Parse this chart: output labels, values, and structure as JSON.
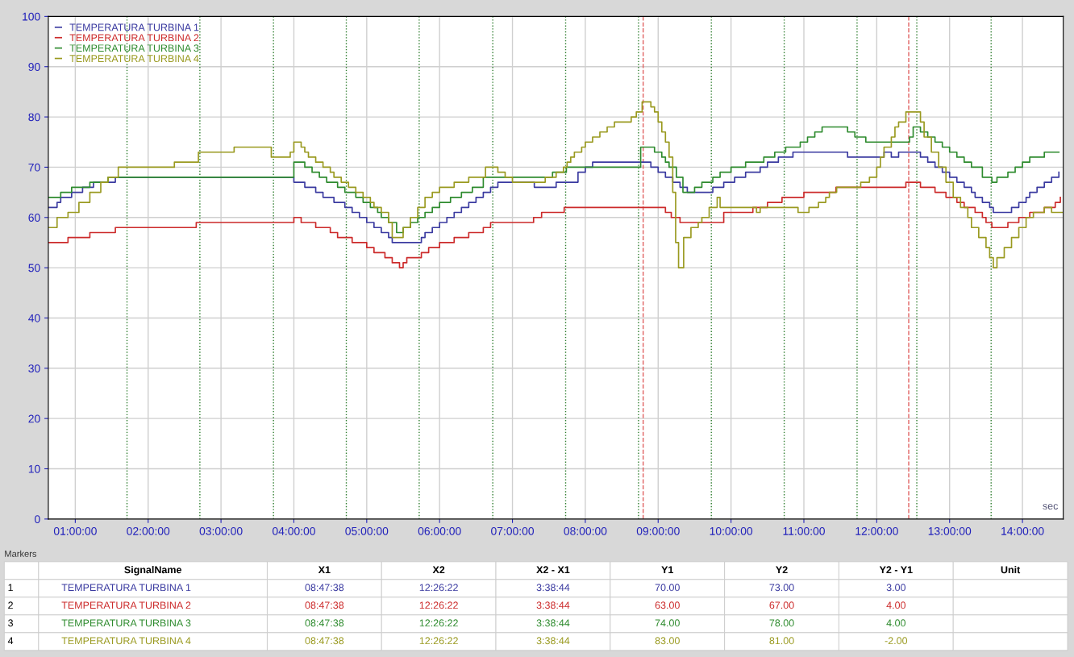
{
  "chart_data": {
    "type": "step",
    "xlabel": "sec",
    "xlim": [
      0.63,
      14.56
    ],
    "ylim": [
      0,
      100
    ],
    "xticks": [
      {
        "value": 1,
        "label": "01:00:00"
      },
      {
        "value": 2,
        "label": "02:00:00"
      },
      {
        "value": 3,
        "label": "03:00:00"
      },
      {
        "value": 4,
        "label": "04:00:00"
      },
      {
        "value": 5,
        "label": "05:00:00"
      },
      {
        "value": 6,
        "label": "06:00:00"
      },
      {
        "value": 7,
        "label": "07:00:00"
      },
      {
        "value": 8,
        "label": "08:00:00"
      },
      {
        "value": 9,
        "label": "09:00:00"
      },
      {
        "value": 10,
        "label": "10:00:00"
      },
      {
        "value": 11,
        "label": "11:00:00"
      },
      {
        "value": 12,
        "label": "12:00:00"
      },
      {
        "value": 13,
        "label": "13:00:00"
      },
      {
        "value": 14,
        "label": "14:00:00"
      }
    ],
    "yticks": [
      0,
      10,
      20,
      30,
      40,
      50,
      60,
      70,
      80,
      90,
      100
    ],
    "grid": true,
    "legend": "top left",
    "series": [
      {
        "name": "TEMPERATURA TURBINA 1",
        "color": "#3a3aa0",
        "x": [
          0.63,
          0.75,
          0.8,
          0.95,
          1.1,
          1.25,
          1.55,
          4.0,
          4.15,
          4.3,
          4.4,
          4.55,
          4.7,
          4.8,
          4.9,
          5.0,
          5.1,
          5.2,
          5.3,
          5.35,
          5.75,
          5.8,
          5.9,
          6.0,
          6.1,
          6.2,
          6.3,
          6.4,
          6.5,
          6.6,
          6.7,
          6.8,
          7.3,
          7.6,
          7.9,
          8.0,
          8.1,
          8.9,
          9.0,
          9.1,
          9.2,
          9.3,
          9.4,
          9.75,
          9.9,
          10.05,
          10.2,
          10.4,
          10.5,
          10.65,
          10.85,
          11.6,
          11.7,
          12.1,
          12.2,
          12.3,
          12.6,
          12.7,
          12.8,
          12.9,
          13.0,
          13.1,
          13.2,
          13.3,
          13.35,
          13.45,
          13.55,
          13.6,
          13.85,
          13.95,
          14.05,
          14.1,
          14.2,
          14.3,
          14.4,
          14.5
        ],
        "values": [
          62,
          63,
          64,
          65,
          66,
          67,
          68,
          67,
          66,
          65,
          64,
          63,
          62,
          61,
          60,
          59,
          58,
          57,
          56,
          55,
          56,
          57,
          58,
          59,
          60,
          61,
          62,
          63,
          64,
          65,
          66,
          67,
          66,
          67,
          69,
          70,
          71,
          70,
          69,
          68,
          67,
          66,
          65,
          66,
          67,
          68,
          69,
          70,
          71,
          72,
          73,
          72,
          72,
          73,
          72,
          73,
          72,
          71,
          70,
          69,
          68,
          67,
          66,
          65,
          64,
          63,
          62,
          61,
          62,
          63,
          64,
          65,
          66,
          67,
          68,
          69
        ]
      },
      {
        "name": "TEMPERATURA TURBINA 2",
        "color": "#cc2a2a",
        "x": [
          0.63,
          0.9,
          1.2,
          1.55,
          2.66,
          4.0,
          4.1,
          4.3,
          4.5,
          4.6,
          4.8,
          5.0,
          5.1,
          5.25,
          5.35,
          5.45,
          5.5,
          5.55,
          5.75,
          5.85,
          6.0,
          6.2,
          6.4,
          6.6,
          6.7,
          7.29,
          7.4,
          7.71,
          9.1,
          9.18,
          9.3,
          9.9,
          10.3,
          10.5,
          10.7,
          11.0,
          11.44,
          12.4,
          12.6,
          12.8,
          12.95,
          13.1,
          13.2,
          13.35,
          13.45,
          13.5,
          13.58,
          13.8,
          13.95,
          14.1,
          14.3,
          14.45,
          14.52
        ],
        "values": [
          55,
          56,
          57,
          58,
          59,
          60,
          59,
          58,
          57,
          56,
          55,
          54,
          53,
          52,
          51,
          50,
          51,
          52,
          53,
          54,
          55,
          56,
          57,
          58,
          59,
          60,
          61,
          62,
          61,
          60,
          59,
          61,
          62,
          63,
          64,
          65,
          66,
          67,
          66,
          65,
          64,
          63,
          62,
          61,
          60,
          59,
          58,
          59,
          60,
          61,
          62,
          63,
          64
        ]
      },
      {
        "name": "TEMPERATURA TURBINA 3",
        "color": "#2e8b2e",
        "x": [
          0.63,
          0.8,
          0.95,
          1.2,
          1.45,
          4.0,
          4.15,
          4.25,
          4.35,
          4.45,
          4.6,
          4.7,
          4.85,
          4.95,
          5.05,
          5.15,
          5.2,
          5.3,
          5.41,
          5.5,
          5.6,
          5.7,
          5.8,
          5.9,
          6.0,
          6.15,
          6.3,
          6.45,
          6.6,
          7.55,
          7.74,
          8.76,
          8.95,
          9.05,
          9.1,
          9.15,
          9.25,
          9.34,
          9.5,
          9.6,
          9.75,
          9.85,
          10.0,
          10.2,
          10.45,
          10.6,
          10.75,
          10.95,
          11.05,
          11.15,
          11.25,
          11.6,
          11.7,
          11.85,
          12.45,
          12.5,
          12.6,
          12.7,
          12.8,
          12.9,
          13.0,
          13.1,
          13.2,
          13.3,
          13.45,
          13.58,
          13.65,
          13.8,
          13.9,
          14.0,
          14.1,
          14.3,
          14.5
        ],
        "values": [
          64,
          65,
          66,
          67,
          68,
          71,
          70,
          69,
          68,
          67,
          66,
          65,
          64,
          63,
          62,
          61,
          60,
          59,
          57,
          58,
          59,
          60,
          61,
          62,
          63,
          64,
          65,
          66,
          68,
          69,
          70,
          74,
          73,
          72,
          71,
          70,
          68,
          65,
          66,
          67,
          68,
          69,
          70,
          71,
          72,
          73,
          74,
          75,
          76,
          77,
          78,
          77,
          76,
          75,
          76,
          78,
          77,
          76,
          75,
          74,
          73,
          72,
          71,
          70,
          68,
          67,
          68,
          69,
          70,
          71,
          72,
          73,
          73
        ]
      },
      {
        "name": "TEMPERATURA TURBINA 4",
        "color": "#9a9a20",
        "x": [
          0.63,
          0.75,
          0.9,
          1.05,
          1.2,
          1.35,
          1.45,
          1.59,
          2.36,
          2.69,
          3.18,
          3.69,
          3.95,
          4.0,
          4.1,
          4.15,
          4.2,
          4.3,
          4.4,
          4.5,
          4.55,
          4.65,
          4.75,
          4.85,
          4.95,
          5.05,
          5.1,
          5.2,
          5.3,
          5.35,
          5.5,
          5.6,
          5.7,
          5.8,
          5.9,
          6.0,
          6.2,
          6.4,
          6.63,
          6.8,
          6.9,
          7.0,
          7.45,
          7.6,
          7.7,
          7.75,
          7.8,
          7.85,
          7.95,
          8.0,
          8.1,
          8.2,
          8.3,
          8.4,
          8.63,
          8.7,
          8.78,
          8.9,
          8.95,
          9.0,
          9.05,
          9.1,
          9.15,
          9.2,
          9.24,
          9.28,
          9.35,
          9.45,
          9.55,
          9.6,
          9.7,
          9.81,
          9.85,
          10.35,
          10.4,
          10.92,
          11.07,
          11.2,
          11.3,
          11.35,
          11.45,
          11.78,
          11.9,
          12.0,
          12.05,
          12.1,
          12.2,
          12.25,
          12.3,
          12.4,
          12.6,
          12.65,
          12.75,
          12.85,
          12.95,
          13.05,
          13.15,
          13.25,
          13.3,
          13.4,
          13.5,
          13.55,
          13.6,
          13.65,
          13.75,
          13.85,
          13.95,
          14.05,
          14.15,
          14.3,
          14.4,
          14.55
        ],
        "values": [
          58,
          60,
          61,
          63,
          65,
          67,
          68,
          70,
          71,
          73,
          74,
          72,
          73,
          75,
          74,
          73,
          72,
          71,
          70,
          69,
          68,
          67,
          66,
          65,
          64,
          63,
          62,
          61,
          59,
          56,
          58,
          60,
          62,
          64,
          65,
          66,
          67,
          68,
          70,
          69,
          68,
          67,
          68,
          69,
          70,
          71,
          72,
          73,
          74,
          75,
          76,
          77,
          78,
          79,
          80,
          81,
          83,
          82,
          81,
          79,
          77,
          75,
          72,
          65,
          55,
          50,
          56,
          58,
          59,
          60,
          62,
          64,
          62,
          61,
          62,
          61,
          62,
          63,
          64,
          65,
          66,
          67,
          68,
          70,
          72,
          74,
          76,
          78,
          79,
          81,
          79,
          76,
          73,
          70,
          67,
          64,
          62,
          60,
          58,
          56,
          54,
          52,
          50,
          52,
          54,
          56,
          58,
          60,
          61,
          62,
          61,
          61
        ]
      }
    ],
    "ref_lines": [
      {
        "axis": "x",
        "value": 1.71,
        "color": "#2e7d2e",
        "line_style": "dotted"
      },
      {
        "axis": "x",
        "value": 2.71,
        "color": "#2e7d2e",
        "line_style": "dotted"
      },
      {
        "axis": "x",
        "value": 3.72,
        "color": "#2e7d2e",
        "line_style": "dotted"
      },
      {
        "axis": "x",
        "value": 4.72,
        "color": "#2e7d2e",
        "line_style": "dotted"
      },
      {
        "axis": "x",
        "value": 5.72,
        "color": "#2e7d2e",
        "line_style": "dotted"
      },
      {
        "axis": "x",
        "value": 6.73,
        "color": "#2e7d2e",
        "line_style": "dotted"
      },
      {
        "axis": "x",
        "value": 7.73,
        "color": "#2e7d2e",
        "line_style": "dotted"
      },
      {
        "axis": "x",
        "value": 8.73,
        "color": "#2e7d2e",
        "line_style": "dotted"
      },
      {
        "axis": "x",
        "value": 9.73,
        "color": "#2e7d2e",
        "line_style": "dotted"
      },
      {
        "axis": "x",
        "value": 10.73,
        "color": "#2e7d2e",
        "line_style": "dotted"
      },
      {
        "axis": "x",
        "value": 11.73,
        "color": "#2e7d2e",
        "line_style": "dotted"
      },
      {
        "axis": "x",
        "value": 12.55,
        "color": "#2e7d2e",
        "line_style": "dotted"
      },
      {
        "axis": "x",
        "value": 13.57,
        "color": "#2e7d2e",
        "line_style": "dotted"
      },
      {
        "axis": "x",
        "value": 8.794,
        "color": "#e06060",
        "line_style": "dashed"
      },
      {
        "axis": "x",
        "value": 12.439,
        "color": "#e06060",
        "line_style": "dashed"
      }
    ],
    "annotations": [
      "Markers",
      "SignalName",
      "X1",
      "X2",
      "X2 - X1",
      "Y1",
      "Y2",
      "Y2 - Y1",
      "Unit",
      "1",
      "TEMPERATURA TURBINA 1",
      "08:47:38",
      "12:26:22",
      "3:38:44",
      "70.00",
      "73.00",
      "3.00",
      "2",
      "TEMPERATURA TURBINA 2",
      "08:47:38",
      "12:26:22",
      "3:38:44",
      "63.00",
      "67.00",
      "4.00",
      "3",
      "TEMPERATURA TURBINA 3",
      "08:47:38",
      "12:26:22",
      "3:38:44",
      "74.00",
      "78.00",
      "4.00",
      "4",
      "TEMPERATURA TURBINA 4",
      "08:47:38",
      "12:26:22",
      "3:38:44",
      "83.00",
      "81.00",
      "-2.00"
    ]
  }
}
